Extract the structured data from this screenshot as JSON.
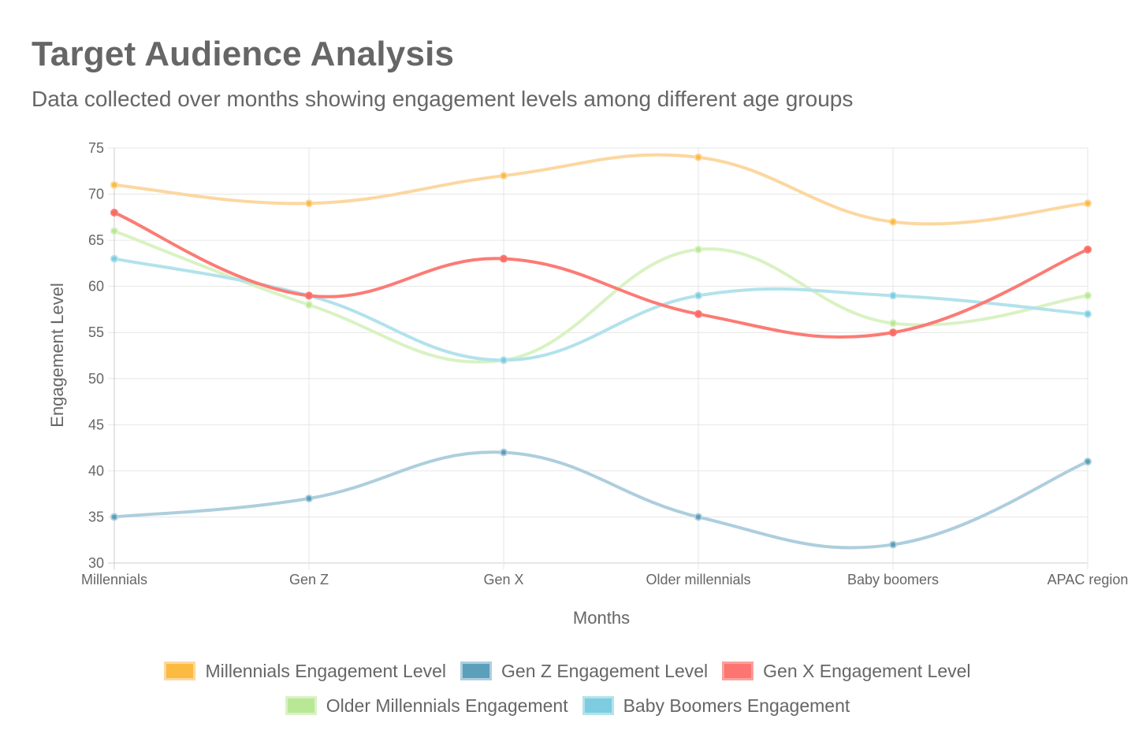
{
  "title": "Target Audience Analysis",
  "subtitle": "Data collected over months showing engagement levels among different age groups",
  "chart_data": {
    "type": "line",
    "title": "Target Audience Analysis",
    "subtitle": "Data collected over months showing engagement levels among different age groups",
    "xlabel": "Months",
    "ylabel": "Engagement Level",
    "categories": [
      "Millennials",
      "Gen Z",
      "Gen X",
      "Older millennials",
      "Baby boomers",
      "APAC region"
    ],
    "ylim": [
      30,
      75
    ],
    "yticks": [
      30,
      35,
      40,
      45,
      50,
      55,
      60,
      65,
      70,
      75
    ],
    "grid": true,
    "legend_position": "bottom",
    "series": [
      {
        "name": "Millennials Engagement Level",
        "values": [
          71,
          69,
          72,
          74,
          67,
          69
        ],
        "color": "#fcd7a0",
        "point_color": "#fbbb40"
      },
      {
        "name": "Gen Z Engagement Level",
        "values": [
          35,
          37,
          42,
          35,
          32,
          41
        ],
        "color": "#adcedd",
        "point_color": "#5b9fbb"
      },
      {
        "name": "Gen X Engagement Level",
        "values": [
          68,
          59,
          63,
          57,
          55,
          64
        ],
        "color": "#fc7b75",
        "point_color": "#f86a64"
      },
      {
        "name": "Older Millennials Engagement",
        "values": [
          66,
          58,
          52,
          64,
          56,
          59
        ],
        "color": "#d9f2c3",
        "point_color": "#b8e895"
      },
      {
        "name": "Baby Boomers Engagement",
        "values": [
          63,
          59,
          52,
          59,
          59,
          57
        ],
        "color": "#b2e2ec",
        "point_color": "#7dcce0"
      }
    ],
    "legend": [
      {
        "name": "Millennials Engagement Level",
        "fill": "#fbbb40",
        "border": "#fcd7a0"
      },
      {
        "name": "Gen Z Engagement Level",
        "fill": "#5b9fbb",
        "border": "#adcedd"
      },
      {
        "name": "Gen X Engagement Level",
        "fill": "#fc7570",
        "border": "#fc9f9a"
      },
      {
        "name": "Older Millennials Engagement",
        "fill": "#b8e895",
        "border": "#d9f2c3"
      },
      {
        "name": "Baby Boomers Engagement",
        "fill": "#7dcce0",
        "border": "#b2e2ec"
      }
    ]
  }
}
